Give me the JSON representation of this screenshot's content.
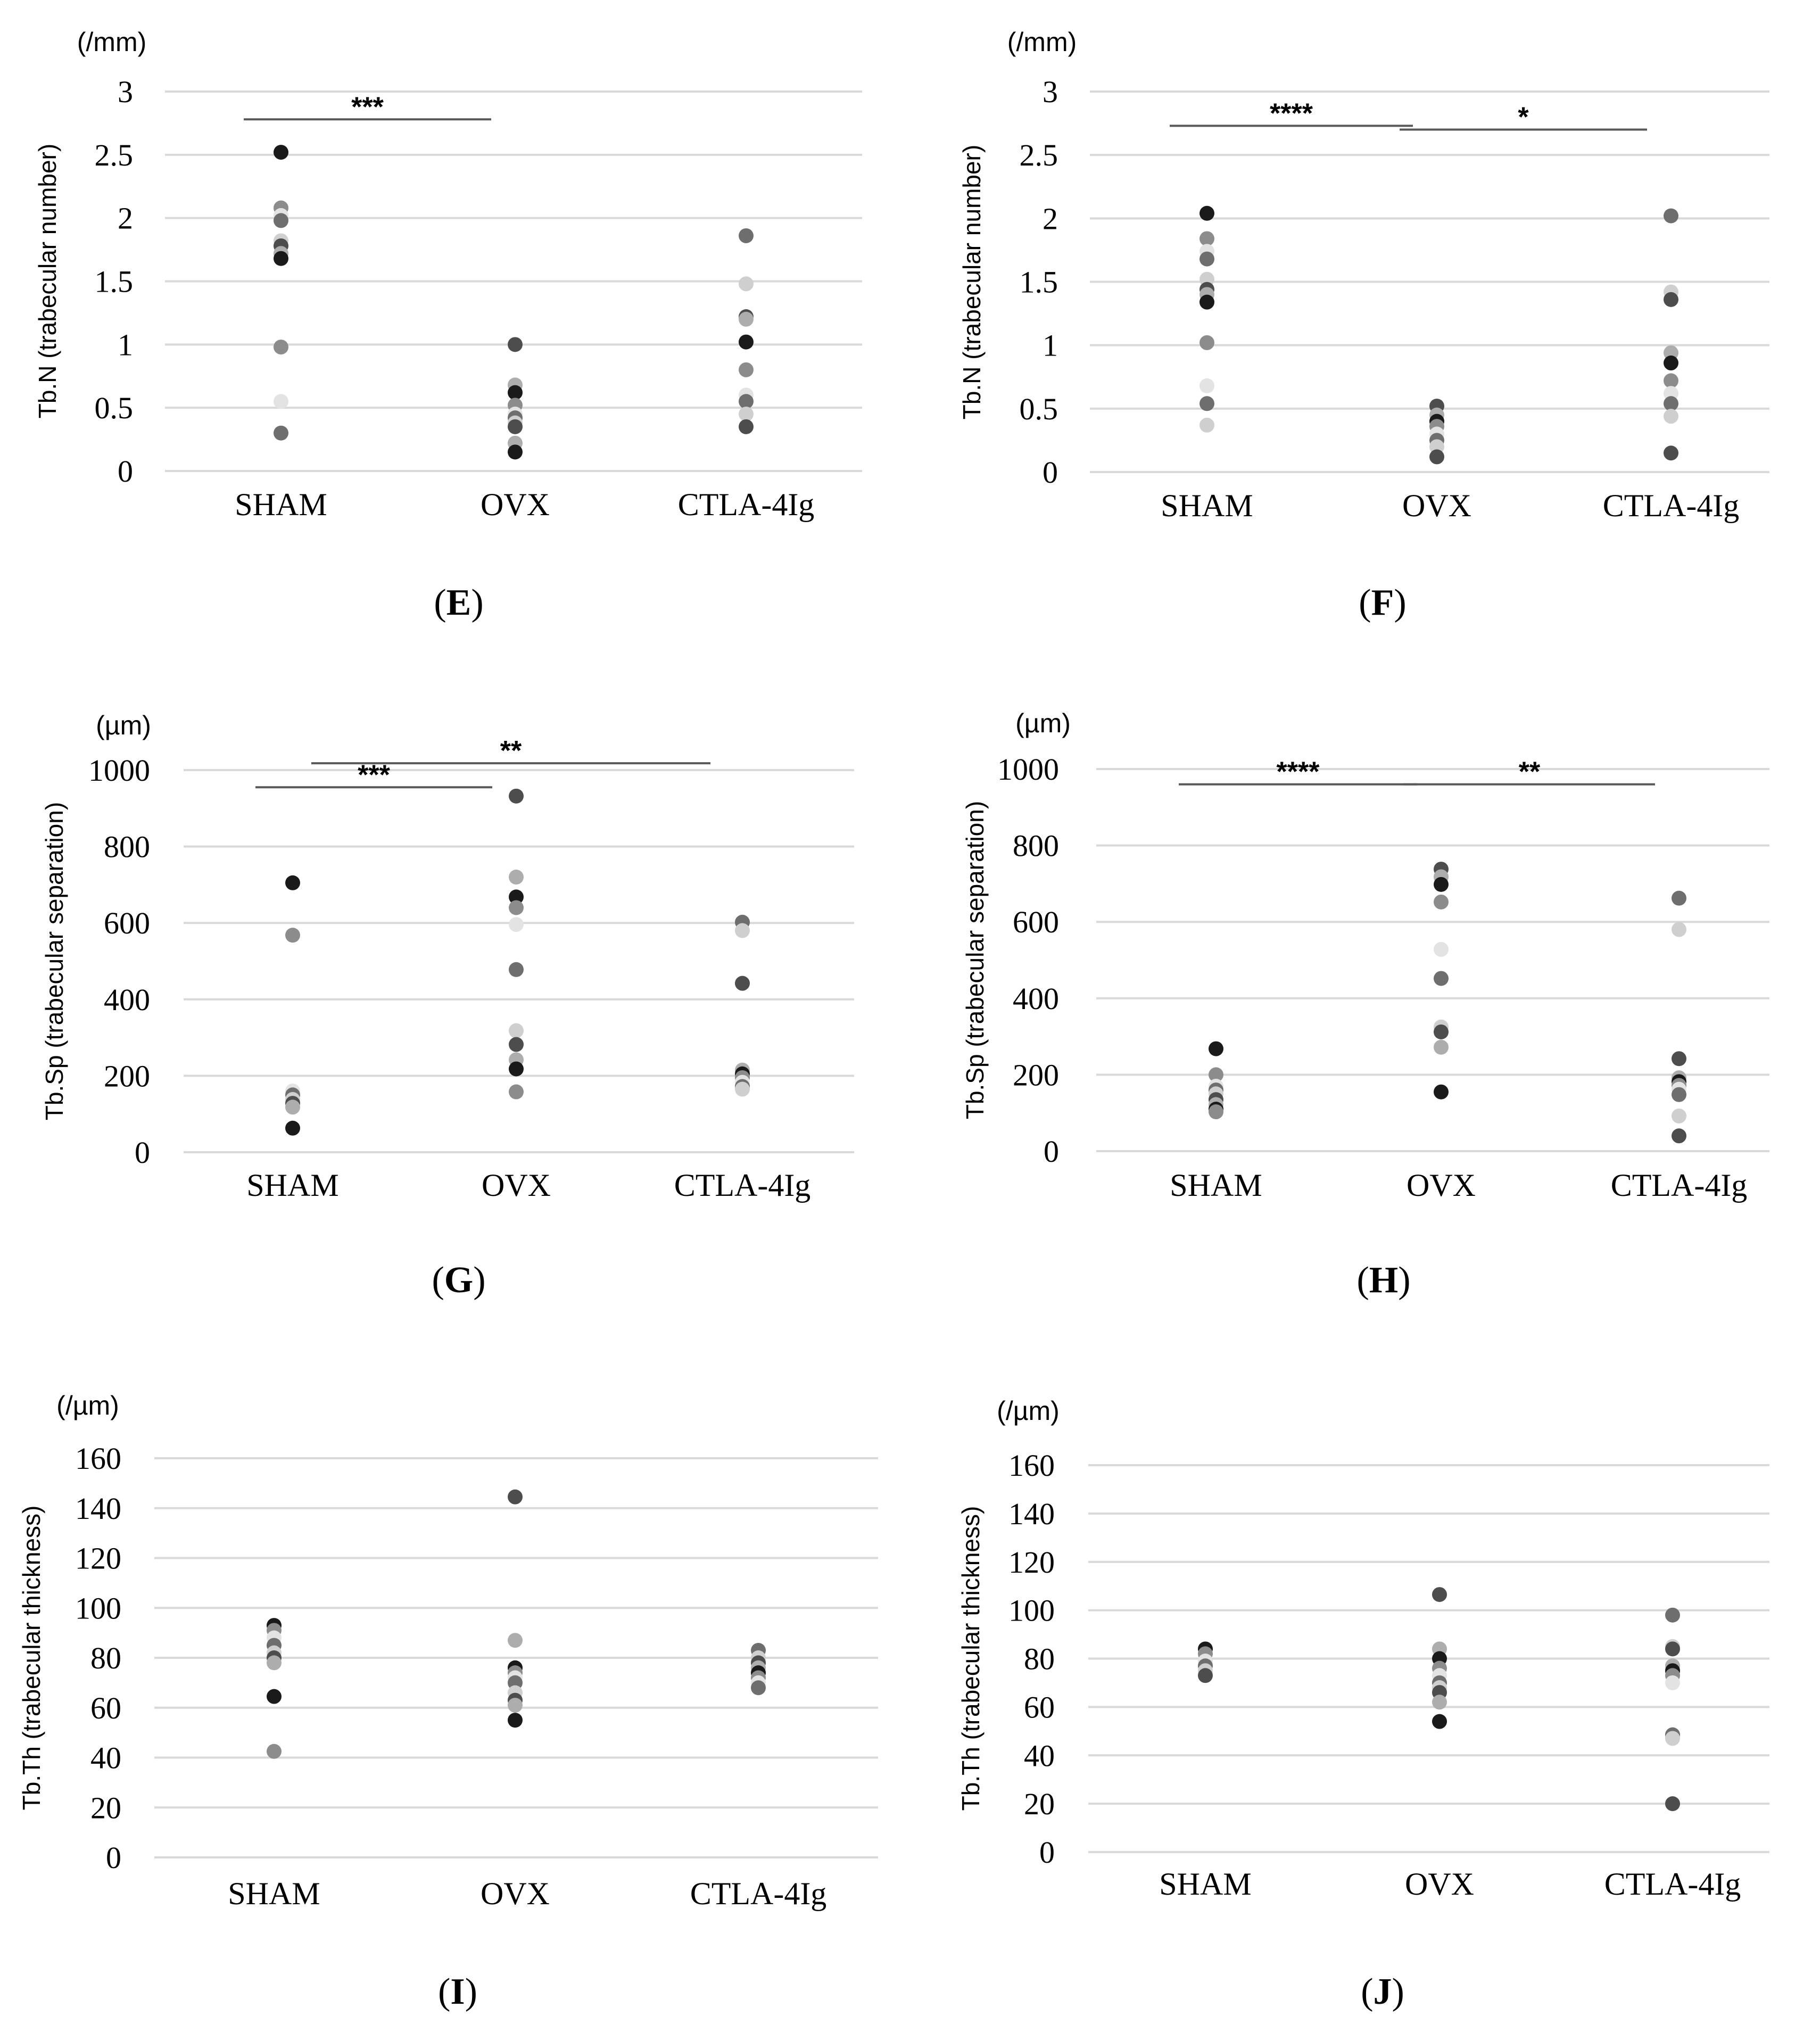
{
  "colors": {
    "gridline": "#d9d9d9",
    "sig_bar": "#595959",
    "text": "#000000",
    "point_shades": [
      "#1a1a1a",
      "#4d4d4d",
      "#6e6e6e",
      "#8c8c8c",
      "#adadad",
      "#cfcfcf",
      "#e3e3e3"
    ]
  },
  "chart_data": [
    {
      "type": "scatter",
      "panel_label": "E",
      "unit": "(/mm)",
      "ylabel": "Tb.N (trabecular number)",
      "ylim": [
        0,
        3
      ],
      "yticks": [
        0,
        0.5,
        1,
        1.5,
        2,
        2.5,
        3
      ],
      "ytick_labels": [
        "0",
        "0.5",
        "1",
        "1.5",
        "2",
        "2.5",
        "3"
      ],
      "categories": [
        "SHAM",
        "OVX",
        "CTLA-4Ig"
      ],
      "points": [
        [
          2.52,
          2.08,
          2.02,
          1.98,
          1.82,
          1.78,
          1.72,
          1.68,
          0.98,
          0.55,
          0.3
        ],
        [
          1.0,
          0.68,
          0.62,
          0.52,
          0.45,
          0.42,
          0.38,
          0.35,
          0.22,
          0.15
        ],
        [
          1.86,
          1.48,
          1.22,
          1.2,
          1.02,
          0.8,
          0.6,
          0.55,
          0.45,
          0.35
        ]
      ],
      "significance": [
        {
          "groups": [
            0,
            1
          ],
          "label": "***",
          "y": 2.78
        }
      ]
    },
    {
      "type": "scatter",
      "panel_label": "F",
      "unit": "(/mm)",
      "ylabel": "Tb.N (trabecular number)",
      "ylim": [
        0,
        3
      ],
      "yticks": [
        0,
        0.5,
        1,
        1.5,
        2,
        2.5,
        3
      ],
      "ytick_labels": [
        "0",
        "0.5",
        "1",
        "1.5",
        "2",
        "2.5",
        "3"
      ],
      "categories": [
        "SHAM",
        "OVX",
        "CTLA-4Ig"
      ],
      "points": [
        [
          2.04,
          1.84,
          1.74,
          1.68,
          1.52,
          1.44,
          1.4,
          1.34,
          1.02,
          0.68,
          0.54,
          0.37
        ],
        [
          0.52,
          0.45,
          0.4,
          0.36,
          0.3,
          0.25,
          0.2,
          0.12
        ],
        [
          2.02,
          1.42,
          1.36,
          0.94,
          0.86,
          0.72,
          0.62,
          0.54,
          0.44,
          0.15
        ]
      ],
      "significance": [
        {
          "groups": [
            0,
            1
          ],
          "label": "****",
          "y": 2.73
        },
        {
          "groups": [
            1,
            2
          ],
          "label": "*",
          "y": 2.7
        }
      ]
    },
    {
      "type": "scatter",
      "panel_label": "G",
      "unit": "(µm)",
      "ylabel": "Tb.Sp (trabecular separation)",
      "ylim": [
        0,
        1000
      ],
      "yticks": [
        0,
        200,
        400,
        600,
        800,
        1000
      ],
      "ytick_labels": [
        "0",
        "200",
        "400",
        "600",
        "800",
        "1000"
      ],
      "categories": [
        "SHAM",
        "OVX",
        "CTLA-4Ig"
      ],
      "points": [
        [
          705,
          568,
          160,
          150,
          138,
          128,
          118,
          63
        ],
        [
          932,
          720,
          668,
          640,
          596,
          478,
          318,
          282,
          242,
          218,
          158
        ],
        [
          602,
          580,
          442,
          215,
          205,
          195,
          183,
          172,
          165
        ]
      ],
      "significance": [
        {
          "groups": [
            0,
            1
          ],
          "label": "***",
          "y": 955
        },
        {
          "groups": [
            0,
            2
          ],
          "label": "**",
          "y": 1018
        }
      ]
    },
    {
      "type": "scatter",
      "panel_label": "H",
      "unit": "(µm)",
      "ylabel": "Tb.Sp (trabecular separation)",
      "ylim": [
        0,
        1000
      ],
      "yticks": [
        0,
        200,
        400,
        600,
        800,
        1000
      ],
      "ytick_labels": [
        "0",
        "200",
        "400",
        "600",
        "800",
        "1000"
      ],
      "categories": [
        "SHAM",
        "OVX",
        "CTLA-4Ig"
      ],
      "points": [
        [
          268,
          200,
          170,
          160,
          150,
          135,
          122,
          110,
          103
        ],
        [
          738,
          718,
          698,
          652,
          528,
          452,
          325,
          312,
          272,
          155
        ],
        [
          662,
          580,
          242,
          192,
          182,
          172,
          162,
          148,
          92,
          40
        ]
      ],
      "significance": [
        {
          "groups": [
            0,
            1
          ],
          "label": "****",
          "y": 960
        },
        {
          "groups": [
            1,
            2
          ],
          "label": "**",
          "y": 960
        }
      ]
    },
    {
      "type": "scatter",
      "panel_label": "I",
      "unit": "(/µm)",
      "ylabel": "Tb.Th (trabecular thickness)",
      "ylim": [
        0,
        160
      ],
      "yticks": [
        0,
        20,
        40,
        60,
        80,
        100,
        120,
        140,
        160
      ],
      "ytick_labels": [
        "0",
        "20",
        "40",
        "60",
        "80",
        "100",
        "120",
        "140",
        "160"
      ],
      "categories": [
        "SHAM",
        "OVX",
        "CTLA-4Ig"
      ],
      "points": [
        [
          93,
          91,
          88,
          85,
          82,
          80,
          78,
          64.5,
          42.5
        ],
        [
          144.5,
          87,
          76,
          74,
          72,
          70,
          66,
          63,
          61,
          55
        ],
        [
          83,
          80,
          78,
          76,
          74,
          72,
          70,
          68
        ]
      ],
      "significance": []
    },
    {
      "type": "scatter",
      "panel_label": "J",
      "unit": "(/µm)",
      "ylabel": "Tb.Th (trabecular thickness)",
      "ylim": [
        0,
        160
      ],
      "yticks": [
        0,
        20,
        40,
        60,
        80,
        100,
        120,
        140,
        160
      ],
      "ytick_labels": [
        "0",
        "20",
        "40",
        "60",
        "80",
        "100",
        "120",
        "140",
        "160"
      ],
      "categories": [
        "SHAM",
        "OVX",
        "CTLA-4Ig"
      ],
      "points": [
        [
          84,
          82,
          79,
          77,
          75,
          73
        ],
        [
          106.5,
          84,
          80,
          76,
          73,
          70,
          68,
          66,
          62,
          54
        ],
        [
          98,
          85,
          84,
          77,
          75,
          73,
          70,
          48.5,
          47,
          20
        ]
      ],
      "significance": []
    }
  ]
}
